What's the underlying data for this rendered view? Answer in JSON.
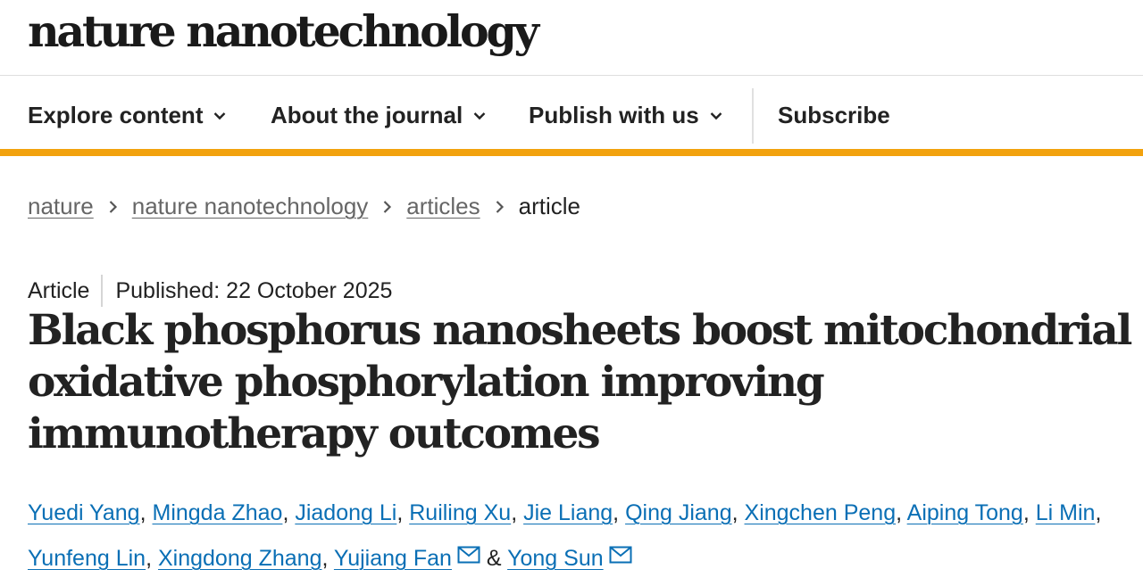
{
  "masthead": {
    "logo": "nature nanotechnology"
  },
  "nav": {
    "items": [
      {
        "label": "Explore content",
        "has_dropdown": true
      },
      {
        "label": "About the journal",
        "has_dropdown": true
      },
      {
        "label": "Publish with us",
        "has_dropdown": true
      },
      {
        "label": "Subscribe",
        "has_dropdown": false
      }
    ]
  },
  "breadcrumb": {
    "items": [
      "nature",
      "nature nanotechnology",
      "articles"
    ],
    "current": "article"
  },
  "article": {
    "type": "Article",
    "published": "Published: 22 October 2025",
    "title": "Black phosphorus nanosheets boost mitochondrial oxidative phosphorylation improving immunotherapy outcomes",
    "authors": [
      "Yuedi Yang",
      "Mingda Zhao",
      "Jiadong Li",
      "Ruiling Xu",
      "Jie Liang",
      "Qing Jiang",
      "Xingchen Peng",
      "Aiping Tong",
      "Li Min",
      "Yunfeng Lin",
      "Xingdong Zhang",
      "Yujiang Fan",
      "Yong Sun"
    ],
    "separators": {
      "comma": ",",
      "ampersand": "&"
    }
  },
  "colors": {
    "accent_bar": "#f2a20e",
    "link": "#0a6fb5",
    "text": "#222222"
  },
  "icons": {
    "dropdown": "chevron-down-icon",
    "crumb_separator": "chevron-right-icon",
    "email": "mail-icon"
  }
}
